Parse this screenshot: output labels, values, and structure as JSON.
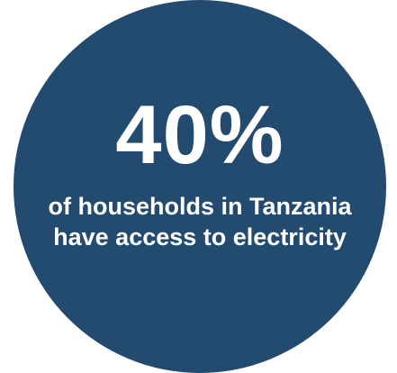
{
  "stat": {
    "value": "40%",
    "caption": "of households in Tanzania have access to electricity"
  },
  "colors": {
    "circle": "#234b6f",
    "text": "#ffffff",
    "background": "#ffffff"
  }
}
